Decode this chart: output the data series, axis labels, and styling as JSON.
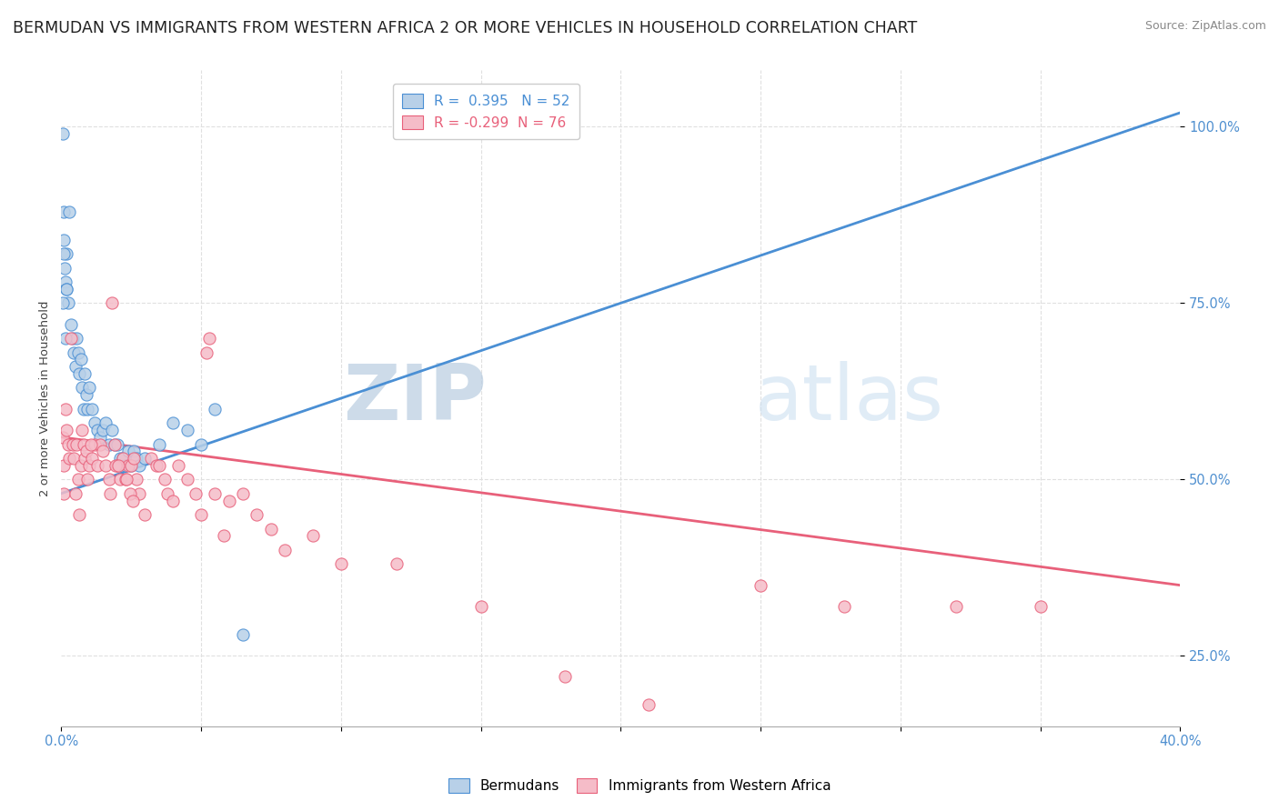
{
  "title": "BERMUDAN VS IMMIGRANTS FROM WESTERN AFRICA 2 OR MORE VEHICLES IN HOUSEHOLD CORRELATION CHART",
  "source": "Source: ZipAtlas.com",
  "ylabel_label": "2 or more Vehicles in Household",
  "legend_label1": "Bermudans",
  "legend_label2": "Immigrants from Western Africa",
  "R1": 0.395,
  "N1": 52,
  "R2": -0.299,
  "N2": 76,
  "xlim": [
    0.0,
    40.0
  ],
  "ylim": [
    15.0,
    108.0
  ],
  "blue_color": "#b8d0e8",
  "pink_color": "#f5bcc8",
  "blue_line_color": "#4a8fd4",
  "pink_line_color": "#e8607a",
  "watermark_color": "#d0dff0",
  "background_color": "#ffffff",
  "grid_color": "#e0e0e0",
  "title_fontsize": 12.5,
  "tick_label_color": "#5090d0",
  "blue_scatter_x": [
    0.05,
    0.08,
    0.1,
    0.12,
    0.15,
    0.18,
    0.2,
    0.25,
    0.3,
    0.35,
    0.4,
    0.45,
    0.5,
    0.55,
    0.6,
    0.65,
    0.7,
    0.75,
    0.8,
    0.85,
    0.9,
    0.95,
    1.0,
    1.1,
    1.2,
    1.3,
    1.4,
    1.5,
    1.6,
    1.7,
    1.8,
    1.9,
    2.0,
    2.1,
    2.2,
    2.3,
    2.4,
    2.5,
    2.6,
    2.7,
    2.8,
    3.0,
    3.5,
    4.0,
    4.5,
    5.0,
    5.5,
    0.05,
    0.1,
    0.15,
    0.2,
    6.5
  ],
  "blue_scatter_y": [
    99.0,
    88.0,
    84.0,
    80.0,
    78.0,
    77.0,
    82.0,
    75.0,
    88.0,
    72.0,
    70.0,
    68.0,
    66.0,
    70.0,
    68.0,
    65.0,
    67.0,
    63.0,
    60.0,
    65.0,
    62.0,
    60.0,
    63.0,
    60.0,
    58.0,
    57.0,
    56.0,
    57.0,
    58.0,
    55.0,
    57.0,
    55.0,
    55.0,
    53.0,
    53.0,
    52.0,
    54.0,
    52.0,
    54.0,
    53.0,
    52.0,
    53.0,
    55.0,
    58.0,
    57.0,
    55.0,
    60.0,
    75.0,
    82.0,
    70.0,
    77.0,
    28.0
  ],
  "pink_scatter_x": [
    0.05,
    0.08,
    0.1,
    0.15,
    0.2,
    0.25,
    0.3,
    0.35,
    0.4,
    0.45,
    0.5,
    0.55,
    0.6,
    0.65,
    0.7,
    0.75,
    0.8,
    0.85,
    0.9,
    0.95,
    1.0,
    1.1,
    1.2,
    1.3,
    1.4,
    1.5,
    1.6,
    1.7,
    1.8,
    1.9,
    2.0,
    2.1,
    2.2,
    2.3,
    2.4,
    2.5,
    2.6,
    2.7,
    2.8,
    3.0,
    3.2,
    3.4,
    3.5,
    3.7,
    3.8,
    4.0,
    4.2,
    4.5,
    4.8,
    5.0,
    5.5,
    5.8,
    6.0,
    6.5,
    7.0,
    7.5,
    8.0,
    9.0,
    10.0,
    12.0,
    15.0,
    18.0,
    21.0,
    25.0,
    28.0,
    32.0,
    35.0,
    5.2,
    5.3,
    2.35,
    2.45,
    2.55,
    1.05,
    1.95,
    2.05,
    1.75
  ],
  "pink_scatter_y": [
    56.0,
    48.0,
    52.0,
    60.0,
    57.0,
    55.0,
    53.0,
    70.0,
    55.0,
    53.0,
    48.0,
    55.0,
    50.0,
    45.0,
    52.0,
    57.0,
    55.0,
    53.0,
    54.0,
    50.0,
    52.0,
    53.0,
    55.0,
    52.0,
    55.0,
    54.0,
    52.0,
    50.0,
    75.0,
    55.0,
    52.0,
    50.0,
    53.0,
    50.0,
    52.0,
    52.0,
    53.0,
    50.0,
    48.0,
    45.0,
    53.0,
    52.0,
    52.0,
    50.0,
    48.0,
    47.0,
    52.0,
    50.0,
    48.0,
    45.0,
    48.0,
    42.0,
    47.0,
    48.0,
    45.0,
    43.0,
    40.0,
    42.0,
    38.0,
    38.0,
    32.0,
    22.0,
    18.0,
    35.0,
    32.0,
    32.0,
    32.0,
    68.0,
    70.0,
    50.0,
    48.0,
    47.0,
    55.0,
    52.0,
    52.0,
    48.0
  ]
}
